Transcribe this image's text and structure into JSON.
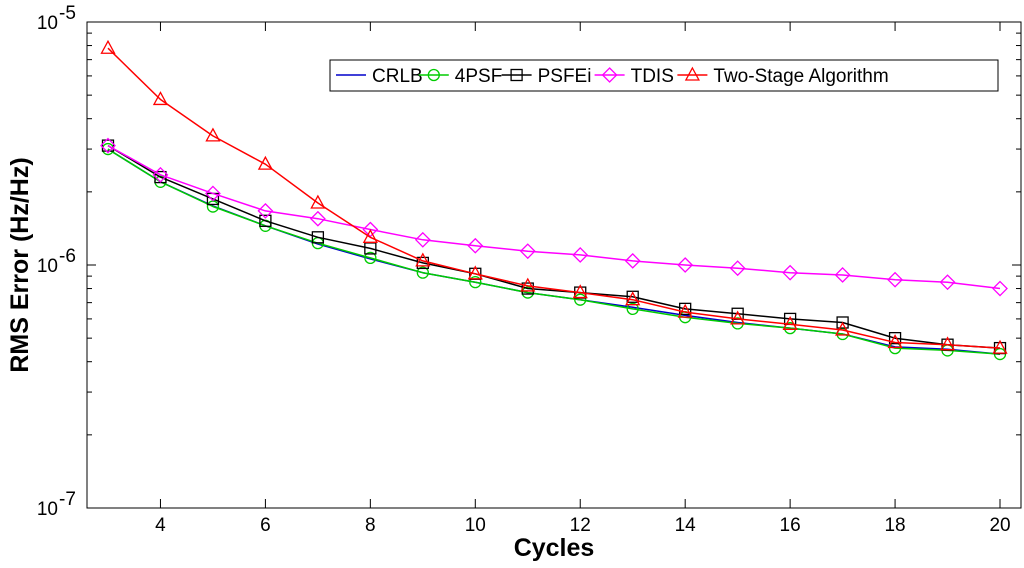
{
  "chart_data": {
    "type": "line",
    "yscale": "log",
    "xlabel": "Cycles",
    "ylabel": "RMS Error (Hz/Hz)",
    "xlim": [
      2.6,
      20.4
    ],
    "ylim": [
      1e-07,
      1e-05
    ],
    "x_ticks": [
      4,
      6,
      8,
      10,
      12,
      14,
      16,
      18,
      20
    ],
    "y_ticks": [
      {
        "value": 1e-07,
        "base": "10",
        "exp": "-7"
      },
      {
        "value": 1e-06,
        "base": "10",
        "exp": "-6"
      },
      {
        "value": 1e-05,
        "base": "10",
        "exp": "-5"
      }
    ],
    "legend_position": "top-right",
    "x": [
      3,
      4,
      5,
      6,
      7,
      8,
      9,
      10,
      11,
      12,
      13,
      14,
      15,
      16,
      17,
      18,
      19,
      20
    ],
    "series": [
      {
        "name": "CRLB",
        "color": "#0000cc",
        "marker": "none",
        "values": [
          3e-06,
          2.2e-06,
          1.75e-06,
          1.45e-06,
          1.22e-06,
          1.06e-06,
          9.3e-07,
          8.5e-07,
          7.7e-07,
          7.2e-07,
          6.7e-07,
          6.2e-07,
          5.8e-07,
          5.5e-07,
          5.2e-07,
          4.6e-07,
          4.5e-07,
          4.3e-07
        ]
      },
      {
        "name": "4PSF",
        "color": "#00cc00",
        "marker": "circle",
        "values": [
          3e-06,
          2.2e-06,
          1.74e-06,
          1.45e-06,
          1.23e-06,
          1.07e-06,
          9.3e-07,
          8.5e-07,
          7.7e-07,
          7.2e-07,
          6.6e-07,
          6.1e-07,
          5.75e-07,
          5.5e-07,
          5.2e-07,
          4.55e-07,
          4.45e-07,
          4.3e-07
        ]
      },
      {
        "name": "PSFEi",
        "color": "#000000",
        "marker": "square",
        "values": [
          3.1e-06,
          2.3e-06,
          1.87e-06,
          1.52e-06,
          1.3e-06,
          1.17e-06,
          1.02e-06,
          9.2e-07,
          8e-07,
          7.7e-07,
          7.4e-07,
          6.6e-07,
          6.3e-07,
          6e-07,
          5.8e-07,
          5e-07,
          4.7e-07,
          4.55e-07
        ]
      },
      {
        "name": "TDIS",
        "color": "#ff00ff",
        "marker": "diamond",
        "values": [
          3.1e-06,
          2.35e-06,
          1.97e-06,
          1.67e-06,
          1.55e-06,
          1.4e-06,
          1.27e-06,
          1.2e-06,
          1.14e-06,
          1.1e-06,
          1.04e-06,
          1e-06,
          9.7e-07,
          9.3e-07,
          9.1e-07,
          8.7e-07,
          8.5e-07,
          8e-07
        ]
      },
      {
        "name": "Two-Stage Algorithm",
        "color": "#ff0000",
        "marker": "triangle",
        "values": [
          7.8e-06,
          4.8e-06,
          3.4e-06,
          2.6e-06,
          1.8e-06,
          1.3e-06,
          1.04e-06,
          9.2e-07,
          8.2e-07,
          7.7e-07,
          7.2e-07,
          6.4e-07,
          6e-07,
          5.7e-07,
          5.4e-07,
          4.8e-07,
          4.7e-07,
          4.55e-07
        ]
      }
    ]
  }
}
